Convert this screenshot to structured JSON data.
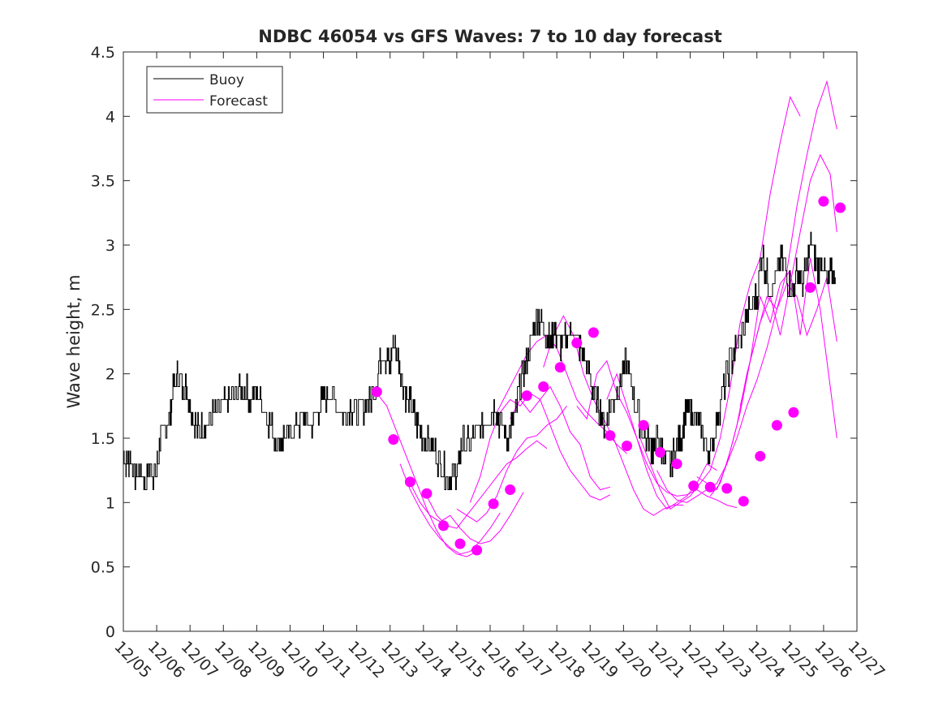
{
  "chart_data": {
    "type": "line",
    "title": "NDBC 46054 vs GFS Waves: 7 to 10 day forecast",
    "xlabel": "",
    "ylabel": "Wave height, m",
    "xlim": [
      0,
      22
    ],
    "ylim": [
      0,
      4.5
    ],
    "yticks": [
      0,
      0.5,
      1,
      1.5,
      2,
      2.5,
      3,
      3.5,
      4,
      4.5
    ],
    "ytick_labels": [
      "0",
      "0.5",
      "1",
      "1.5",
      "2",
      "2.5",
      "3",
      "3.5",
      "4",
      "4.5"
    ],
    "xtick_labels": [
      "12/05",
      "12/06",
      "12/07",
      "12/08",
      "12/09",
      "12/10",
      "12/11",
      "12/12",
      "12/13",
      "12/14",
      "12/15",
      "12/16",
      "12/17",
      "12/18",
      "12/19",
      "12/20",
      "12/21",
      "12/22",
      "12/23",
      "12/24",
      "12/25",
      "12/26",
      "12/27"
    ],
    "legend": {
      "position": "top-left",
      "entries": [
        {
          "label": "Buoy",
          "color": "#000000"
        },
        {
          "label": "Forecast",
          "color": "#ff00ff"
        }
      ]
    },
    "colors": {
      "buoy": "#000000",
      "forecast": "#ff00ff",
      "axis": "#262626"
    },
    "buoy": {
      "name": "Buoy",
      "x": [
        0,
        0.1,
        0.2,
        0.35,
        0.5,
        0.65,
        0.8,
        0.9,
        1.0,
        1.1,
        1.25,
        1.4,
        1.5,
        1.65,
        1.8,
        1.9,
        2.0,
        2.1,
        2.25,
        2.4,
        2.6,
        2.8,
        3.0,
        3.2,
        3.4,
        3.6,
        3.8,
        4.0,
        4.2,
        4.4,
        4.6,
        4.8,
        5.0,
        5.2,
        5.4,
        5.6,
        5.8,
        6.0,
        6.2,
        6.4,
        6.6,
        6.8,
        7.0,
        7.2,
        7.4,
        7.6,
        7.75,
        7.9,
        8.0,
        8.1,
        8.2,
        8.35,
        8.5,
        8.65,
        8.8,
        9.0,
        9.2,
        9.4,
        9.6,
        9.75,
        9.9,
        10.0,
        10.1,
        10.2,
        10.4,
        10.6,
        10.8,
        11.0,
        11.15,
        11.3,
        11.5,
        11.65,
        11.8,
        11.95,
        12.1,
        12.25,
        12.4,
        12.55,
        12.7,
        12.8,
        12.9,
        13.0,
        13.15,
        13.3,
        13.5,
        13.7,
        13.85,
        14.0,
        14.15,
        14.3,
        14.45,
        14.6,
        14.8,
        14.95,
        15.1,
        15.25,
        15.4,
        15.6,
        15.8,
        15.9,
        16.0,
        16.1,
        16.25,
        16.4,
        16.55,
        16.7,
        16.8,
        16.9,
        17.0,
        17.1,
        17.25,
        17.4,
        17.55,
        17.7,
        17.85,
        18.0,
        18.2,
        18.4,
        18.6,
        18.8,
        19.0,
        19.15,
        19.3,
        19.45,
        19.6,
        19.75,
        19.9,
        20.05,
        20.2,
        20.35,
        20.5,
        20.65,
        20.8,
        20.95,
        21.1,
        21.25,
        21.35
      ],
      "values": [
        1.4,
        1.3,
        1.35,
        1.2,
        1.25,
        1.15,
        1.3,
        1.2,
        1.25,
        1.5,
        1.55,
        1.7,
        1.9,
        2.0,
        1.85,
        1.9,
        1.75,
        1.65,
        1.55,
        1.6,
        1.65,
        1.7,
        1.75,
        1.8,
        1.85,
        1.9,
        1.8,
        1.85,
        1.75,
        1.6,
        1.45,
        1.5,
        1.55,
        1.6,
        1.65,
        1.6,
        1.7,
        1.8,
        1.9,
        1.75,
        1.7,
        1.75,
        1.7,
        1.75,
        1.8,
        1.95,
        2.2,
        2.1,
        2.05,
        2.25,
        2.15,
        2.0,
        1.8,
        1.75,
        1.6,
        1.5,
        1.45,
        1.35,
        1.25,
        1.2,
        1.25,
        1.2,
        1.35,
        1.5,
        1.45,
        1.55,
        1.6,
        1.7,
        1.75,
        1.6,
        1.5,
        1.6,
        1.75,
        2.0,
        2.1,
        2.3,
        2.45,
        2.4,
        2.3,
        2.25,
        2.35,
        2.3,
        2.2,
        2.3,
        2.35,
        2.2,
        2.1,
        1.95,
        1.8,
        1.7,
        1.6,
        1.75,
        1.85,
        2.0,
        2.1,
        1.9,
        1.7,
        1.55,
        1.45,
        1.4,
        1.5,
        1.45,
        1.35,
        1.3,
        1.4,
        1.5,
        1.6,
        1.7,
        1.75,
        1.65,
        1.6,
        1.5,
        1.4,
        1.5,
        1.7,
        1.9,
        2.1,
        2.2,
        2.35,
        2.5,
        2.6,
        2.95,
        2.75,
        2.65,
        2.8,
        2.9,
        2.75,
        2.6,
        2.8,
        2.7,
        2.85,
        3.05,
        2.8,
        2.9,
        2.7,
        2.8,
        2.75
      ]
    },
    "forecast_series": [
      {
        "name": "Forecast",
        "x": [
          7.6,
          7.9,
          8.2,
          8.5,
          8.8,
          9.1,
          9.4,
          9.7,
          10.0,
          10.3,
          10.6
        ],
        "values": [
          1.85,
          1.75,
          1.55,
          1.35,
          1.15,
          0.95,
          0.78,
          0.66,
          0.6,
          0.58,
          0.62
        ]
      },
      {
        "name": "Forecast",
        "x": [
          8.3,
          8.6,
          8.9,
          9.2,
          9.5,
          9.8,
          10.1,
          10.4,
          10.7,
          11.0,
          11.3
        ],
        "values": [
          1.3,
          1.1,
          0.95,
          0.82,
          0.72,
          0.65,
          0.6,
          0.62,
          0.7,
          0.8,
          0.92
        ]
      },
      {
        "name": "Forecast",
        "x": [
          8.6,
          8.9,
          9.2,
          9.5,
          9.8,
          10.1,
          10.4,
          10.7,
          11.0,
          11.3,
          11.6,
          12.0
        ],
        "values": [
          1.15,
          1.0,
          0.9,
          0.85,
          0.9,
          0.8,
          0.72,
          0.68,
          0.7,
          0.78,
          0.9,
          1.08
        ]
      },
      {
        "name": "Forecast",
        "x": [
          9.1,
          9.4,
          9.7,
          10.0,
          10.3,
          10.6,
          10.9,
          11.2,
          11.5,
          11.8,
          12.1,
          12.4,
          12.7
        ],
        "values": [
          1.05,
          0.9,
          0.82,
          0.8,
          0.9,
          1.0,
          1.1,
          1.2,
          1.3,
          1.35,
          1.42,
          1.48,
          1.42
        ]
      },
      {
        "name": "Forecast",
        "x": [
          10.0,
          10.3,
          10.6,
          10.9,
          11.2,
          11.5,
          11.8,
          12.1,
          12.4,
          12.7,
          13.0,
          13.3
        ],
        "values": [
          0.95,
          0.9,
          0.85,
          0.92,
          1.05,
          1.25,
          1.4,
          1.5,
          1.52,
          1.6,
          1.65,
          1.75
        ]
      },
      {
        "name": "Forecast",
        "x": [
          10.4,
          10.7,
          11.0,
          11.3,
          11.6,
          11.9,
          12.2,
          12.5,
          12.8,
          13.1,
          13.4,
          13.7,
          14.0,
          14.3,
          14.6
        ],
        "values": [
          1.0,
          1.2,
          1.5,
          1.7,
          1.8,
          1.75,
          1.85,
          1.8,
          1.6,
          1.4,
          1.25,
          1.15,
          1.05,
          1.02,
          1.06
        ]
      },
      {
        "name": "Forecast",
        "x": [
          11.2,
          11.5,
          11.8,
          12.1,
          12.4,
          12.7,
          13.0,
          13.3,
          13.6,
          13.9,
          14.2,
          14.5,
          14.8,
          15.1
        ],
        "values": [
          1.7,
          1.85,
          2.0,
          2.15,
          2.25,
          2.3,
          2.2,
          2.0,
          1.8,
          1.7,
          1.62,
          1.55,
          1.45,
          1.38
        ]
      },
      {
        "name": "Forecast",
        "x": [
          11.6,
          11.9,
          12.2,
          12.5,
          12.8,
          13.1,
          13.4,
          13.7,
          14.0,
          14.3,
          14.6
        ],
        "values": [
          1.65,
          1.8,
          1.7,
          1.8,
          1.9,
          1.75,
          1.55,
          1.45,
          1.2,
          1.1,
          1.12
        ]
      },
      {
        "name": "Forecast",
        "x": [
          12.6,
          12.9,
          13.2,
          13.5,
          13.8,
          14.1,
          14.4,
          14.7,
          15.0,
          15.3,
          15.6,
          15.9,
          16.2,
          16.5,
          16.8
        ],
        "values": [
          2.05,
          2.3,
          2.45,
          2.3,
          2.0,
          1.8,
          1.65,
          1.5,
          1.3,
          1.1,
          0.95,
          0.9,
          0.95,
          0.98,
          0.98
        ]
      },
      {
        "name": "Forecast",
        "x": [
          13.6,
          13.9,
          14.2,
          14.5,
          14.8,
          15.1,
          15.4,
          15.7,
          16.0,
          16.3,
          16.6,
          16.9,
          17.2,
          17.5,
          17.8
        ],
        "values": [
          1.75,
          1.65,
          2.0,
          2.1,
          1.85,
          1.7,
          1.5,
          1.25,
          1.05,
          0.95,
          1.0,
          1.05,
          1.15,
          1.3,
          1.25
        ]
      },
      {
        "name": "Forecast",
        "x": [
          14.5,
          14.8,
          15.1,
          15.4,
          15.7,
          16.0,
          16.3,
          16.6,
          16.9,
          17.2,
          17.5,
          17.8,
          18.1,
          18.4
        ],
        "values": [
          1.8,
          2.0,
          1.75,
          1.5,
          1.3,
          1.15,
          1.08,
          1.05,
          1.06,
          1.1,
          1.05,
          1.02,
          0.98,
          0.96
        ]
      },
      {
        "name": "Forecast",
        "x": [
          15.5,
          15.8,
          16.1,
          16.4,
          16.7,
          17.0,
          17.3,
          17.6,
          17.9,
          18.2,
          18.5,
          18.8,
          19.1,
          19.4,
          19.7,
          20.0,
          20.3
        ],
        "values": [
          1.5,
          1.3,
          1.1,
          0.95,
          1.0,
          1.05,
          1.15,
          1.25,
          1.5,
          1.9,
          2.4,
          2.7,
          2.9,
          3.4,
          3.8,
          4.15,
          4.0
        ]
      },
      {
        "name": "Forecast",
        "x": [
          16.0,
          16.3,
          16.6,
          16.9,
          17.2,
          17.5,
          17.8,
          18.1,
          18.4,
          18.7,
          19.0,
          19.3,
          19.6,
          19.9,
          20.2,
          20.5,
          20.8,
          21.1,
          21.4
        ],
        "values": [
          1.25,
          1.1,
          1.02,
          1.0,
          1.05,
          1.1,
          1.15,
          1.3,
          1.6,
          2.0,
          2.3,
          2.6,
          2.5,
          2.8,
          3.3,
          3.7,
          4.05,
          4.27,
          3.9
        ]
      },
      {
        "name": "Forecast",
        "x": [
          17.2,
          17.5,
          17.8,
          18.1,
          18.4,
          18.7,
          19.0,
          19.3,
          19.6,
          19.9,
          20.2,
          20.5,
          20.8,
          21.1,
          21.4
        ],
        "values": [
          1.2,
          1.15,
          1.1,
          1.3,
          1.5,
          1.75,
          1.95,
          2.2,
          2.5,
          2.7,
          2.6,
          2.3,
          2.5,
          2.75,
          2.25
        ]
      },
      {
        "name": "Forecast",
        "x": [
          17.6,
          17.9,
          18.2,
          18.5,
          18.8,
          19.1,
          19.4,
          19.7,
          20.0,
          20.3,
          20.6,
          20.9,
          21.2,
          21.4
        ],
        "values": [
          1.05,
          1.15,
          1.4,
          1.7,
          2.1,
          2.4,
          2.6,
          2.3,
          2.7,
          3.1,
          3.5,
          3.7,
          3.55,
          3.1
        ]
      },
      {
        "name": "Forecast",
        "x": [
          18.5,
          18.8,
          19.1,
          19.4,
          19.7,
          20.0,
          20.3,
          20.6,
          20.9,
          21.2,
          21.4
        ],
        "values": [
          1.75,
          2.1,
          2.6,
          2.4,
          2.7,
          2.8,
          2.3,
          2.9,
          2.5,
          1.9,
          1.5
        ]
      }
    ],
    "forecast_points": {
      "x": [
        7.6,
        8.1,
        8.6,
        9.1,
        9.6,
        10.1,
        10.6,
        11.1,
        11.6,
        12.1,
        12.6,
        13.1,
        13.6,
        14.1,
        14.6,
        15.1,
        15.6,
        16.1,
        16.6,
        17.1,
        17.6,
        18.1,
        18.6,
        19.1,
        19.6,
        20.1,
        20.6
      ],
      "values": [
        1.86,
        1.49,
        1.16,
        1.07,
        0.82,
        0.68,
        0.63,
        0.99,
        1.1,
        1.83,
        1.9,
        2.05,
        2.24,
        2.32,
        1.52,
        1.44,
        1.6,
        1.39,
        1.3,
        1.13,
        1.12,
        1.11,
        1.01,
        1.36,
        1.6,
        1.7,
        2.67
      ]
    },
    "forecast_points_tail": {
      "x": [
        21.0,
        21.5
      ],
      "values": [
        3.34,
        3.29
      ]
    }
  }
}
